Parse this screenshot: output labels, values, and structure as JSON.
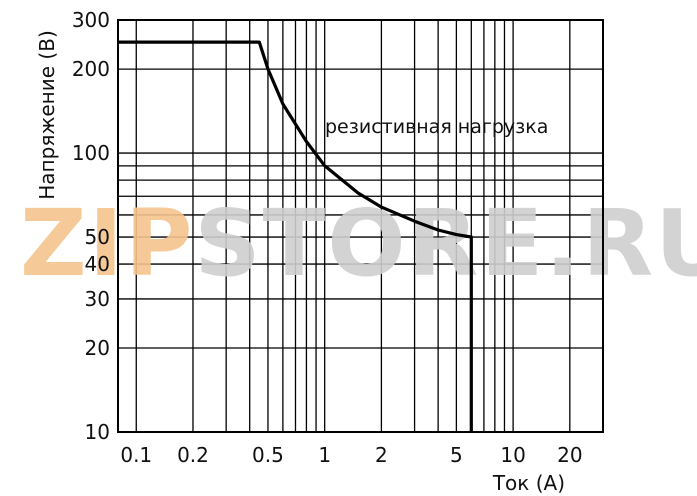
{
  "chart_data": {
    "type": "line",
    "xlabel": "Ток (A)",
    "ylabel": "Напряжение (В)",
    "xscale": "log",
    "yscale": "log",
    "xlim": [
      0.08,
      30
    ],
    "ylim": [
      10,
      300
    ],
    "grid": true,
    "xticks": [
      {
        "value": 0.1,
        "label": "0.1"
      },
      {
        "value": 0.2,
        "label": "0.2"
      },
      {
        "value": 0.5,
        "label": "0.5"
      },
      {
        "value": 1,
        "label": "1"
      },
      {
        "value": 2,
        "label": "2"
      },
      {
        "value": 5,
        "label": "5"
      },
      {
        "value": 10,
        "label": "10"
      },
      {
        "value": 20,
        "label": "20"
      }
    ],
    "yticks": [
      {
        "value": 10,
        "label": "10"
      },
      {
        "value": 20,
        "label": "20"
      },
      {
        "value": 30,
        "label": "30"
      },
      {
        "value": 40,
        "label": "40"
      },
      {
        "value": 50,
        "label": "50"
      },
      {
        "value": 100,
        "label": "100"
      },
      {
        "value": 200,
        "label": "200"
      },
      {
        "value": 300,
        "label": "300"
      }
    ],
    "xgrid": [
      0.1,
      0.2,
      0.3,
      0.4,
      0.5,
      0.6,
      0.7,
      0.8,
      0.9,
      1,
      2,
      3,
      4,
      5,
      6,
      7,
      8,
      9,
      10,
      20
    ],
    "ygrid": [
      10,
      20,
      30,
      40,
      50,
      60,
      70,
      80,
      90,
      100,
      200,
      300
    ],
    "annotations": [
      {
        "text": "резистивная нагрузка",
        "x": 5,
        "y": 150
      }
    ],
    "series": [
      {
        "points": [
          [
            0.08,
            250
          ],
          [
            0.45,
            250
          ],
          [
            0.5,
            200
          ],
          [
            0.6,
            150
          ],
          [
            0.8,
            110
          ],
          [
            1,
            90
          ],
          [
            1.5,
            72
          ],
          [
            2,
            64
          ],
          [
            3,
            57
          ],
          [
            4,
            53
          ],
          [
            5,
            51
          ],
          [
            6,
            50
          ],
          [
            6,
            10
          ]
        ]
      }
    ]
  },
  "watermark": "ZIPSTORE.RU",
  "colors": {
    "line": "#000000",
    "grid": "#000000",
    "watermark_zip": "#f6c48f",
    "watermark_rest": "#cfcfcf"
  }
}
